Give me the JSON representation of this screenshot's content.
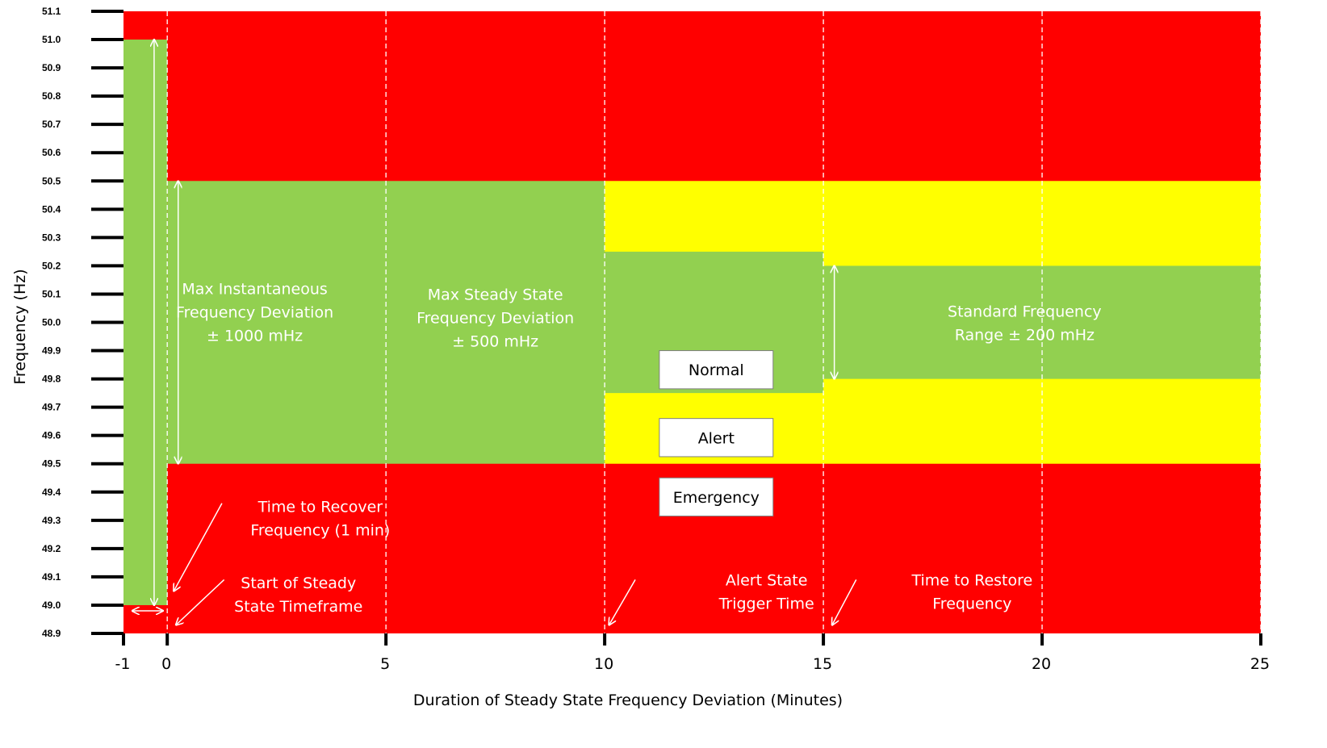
{
  "chart_data": {
    "type": "area",
    "xlabel": "Duration of Steady State Frequency Deviation (Minutes)",
    "ylabel": "Frequency (Hz)",
    "xlim": [
      -1,
      25
    ],
    "ylim": [
      48.9,
      51.1
    ],
    "x_ticks": [
      {
        "value": -1,
        "label": "-1"
      },
      {
        "value": 0,
        "label": "0"
      },
      {
        "value": 5,
        "label": "5"
      },
      {
        "value": 10,
        "label": "10"
      },
      {
        "value": 15,
        "label": "15"
      },
      {
        "value": 20,
        "label": "20"
      },
      {
        "value": 25,
        "label": "25"
      }
    ],
    "y_ticks": [
      "51.1",
      "51.0",
      "50.9",
      "50.8",
      "50.7",
      "50.6",
      "50.5",
      "50.4",
      "50.3",
      "50.2",
      "50.1",
      "50.0",
      "49.9",
      "49.8",
      "49.7",
      "49.6",
      "49.5",
      "49.4",
      "49.3",
      "49.2",
      "49.1",
      "49.0",
      "48.9"
    ],
    "gridlines_x": [
      0,
      5,
      10,
      15,
      20,
      25
    ],
    "colors": {
      "emergency": "#ff0000",
      "alert": "#ffff00",
      "normal": "#92d050"
    },
    "regions": [
      {
        "state": "emergency",
        "x": [
          -1,
          25
        ],
        "y": [
          48.9,
          51.1
        ]
      },
      {
        "state": "normal",
        "x": [
          -1,
          0
        ],
        "y": [
          49.0,
          51.0
        ]
      },
      {
        "state": "normal",
        "x": [
          0,
          10
        ],
        "y": [
          49.5,
          50.5
        ]
      },
      {
        "state": "alert",
        "x": [
          10,
          25
        ],
        "y": [
          49.5,
          50.5
        ]
      },
      {
        "state": "normal",
        "x": [
          10,
          15
        ],
        "y": [
          49.75,
          50.25
        ]
      },
      {
        "state": "normal",
        "x": [
          15,
          25
        ],
        "y": [
          49.8,
          50.2
        ]
      }
    ],
    "legend": [
      "Normal",
      "Alert",
      "Emergency"
    ],
    "annotations": [
      {
        "lines": [
          "Max Instantaneous",
          "Frequency Deviation",
          "± 1000  mHz"
        ]
      },
      {
        "lines": [
          "Max Steady State",
          "Frequency Deviation",
          "± 500 mHz"
        ]
      },
      {
        "lines": [
          "Standard Frequency",
          "Range ± 200 mHz"
        ]
      },
      {
        "lines": [
          "Time to Recover",
          "Frequency (1 min)"
        ]
      },
      {
        "lines": [
          "Start of Steady",
          "State Timeframe"
        ]
      },
      {
        "lines": [
          "Alert State",
          "Trigger Time"
        ]
      },
      {
        "lines": [
          "Time to Restore",
          "Frequency"
        ]
      }
    ]
  }
}
